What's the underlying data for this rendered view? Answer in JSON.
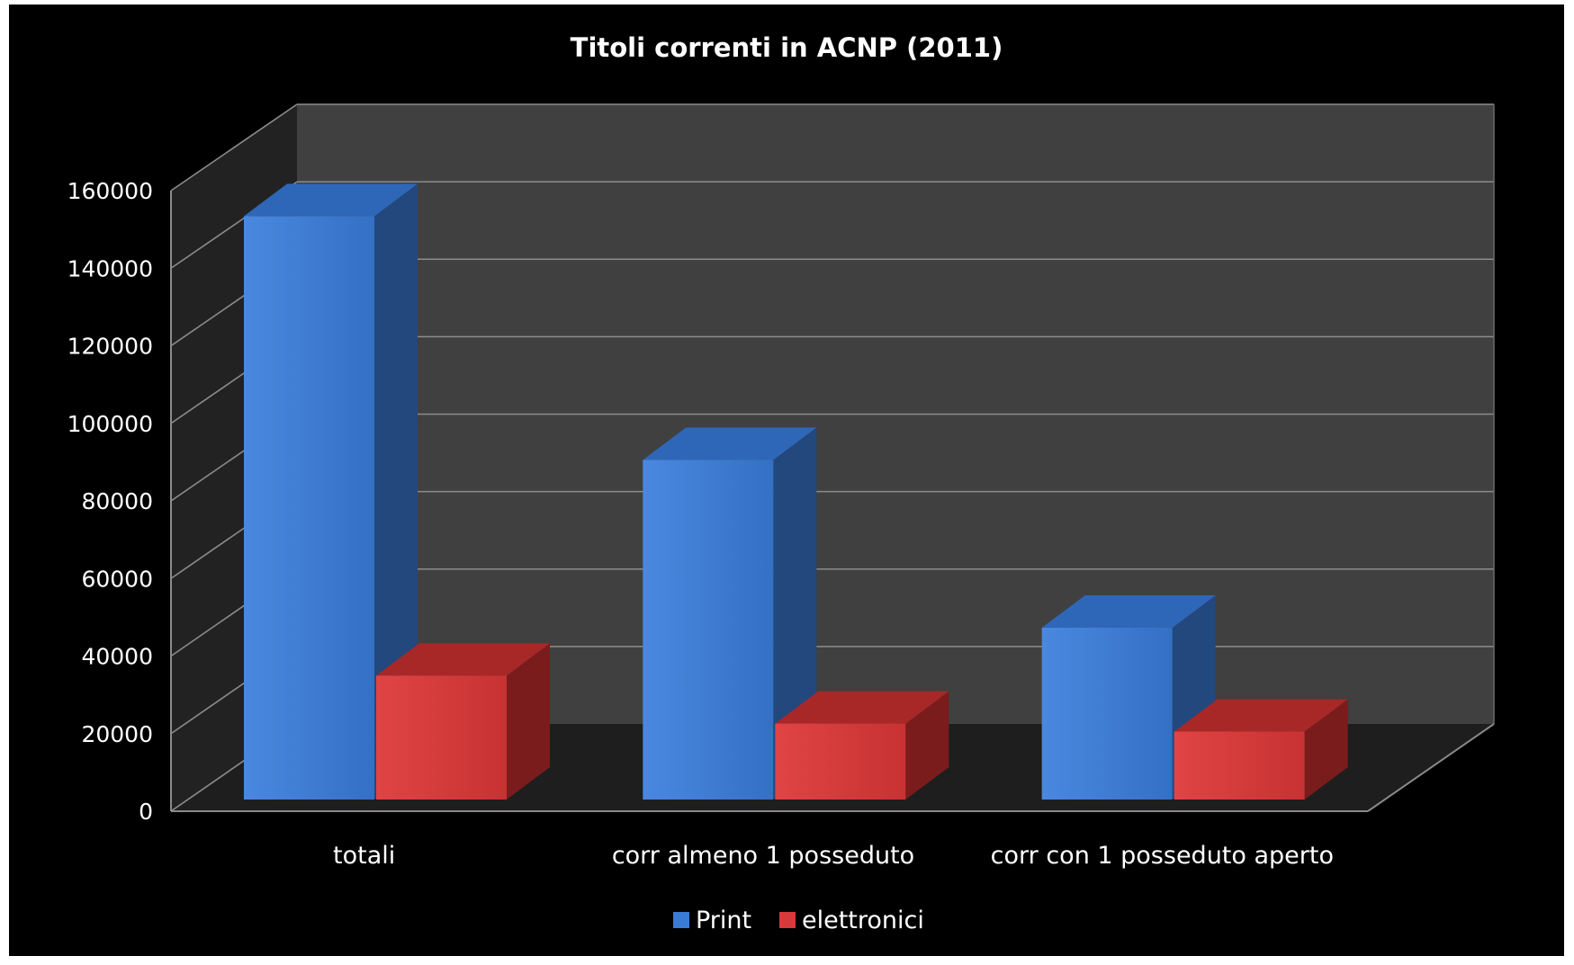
{
  "chart_data": {
    "type": "bar",
    "title": "Titoli correnti in ACNP (2011)",
    "categories": [
      "totali",
      "corr almeno 1 posseduto",
      "corr con 1 posseduto aperto"
    ],
    "series": [
      {
        "name": "Print",
        "values": [
          146000,
          85000,
          43000
        ],
        "color": "#3a7bd5"
      },
      {
        "name": "elettronici",
        "values": [
          31000,
          19000,
          17000
        ],
        "color": "#d63a3a"
      }
    ],
    "yticks": [
      "0",
      "20000",
      "40000",
      "60000",
      "80000",
      "100000",
      "120000",
      "140000",
      "160000"
    ],
    "ylim": [
      0,
      160000
    ],
    "legend_position": "bottom",
    "grid": true,
    "style": "3d-clustered-column"
  }
}
